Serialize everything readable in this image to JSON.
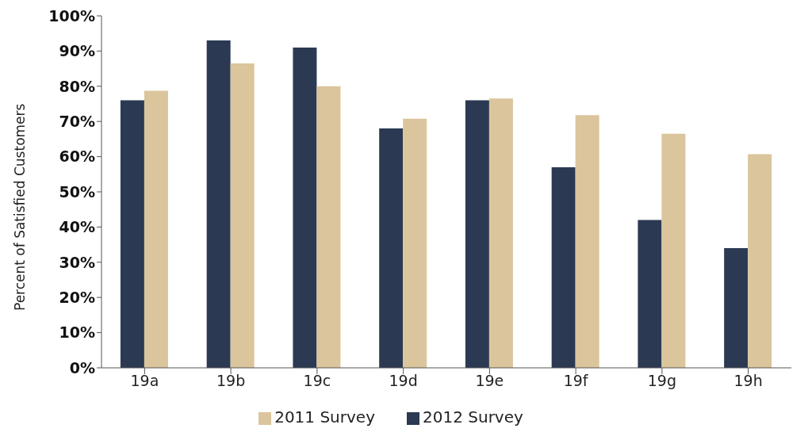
{
  "chart_data": {
    "type": "bar",
    "ylabel": "Percent of Satisfied Customers",
    "categories": [
      "19a",
      "19b",
      "19c",
      "19d",
      "19e",
      "19f",
      "19g",
      "19h"
    ],
    "series": [
      {
        "name": "2012 Survey",
        "color": "#2b3a52",
        "values": [
          76,
          93,
          91,
          68,
          76,
          57,
          42,
          34
        ]
      },
      {
        "name": "2011 Survey",
        "color": "#dbc59c",
        "values": [
          78.7,
          86.5,
          80,
          70.8,
          76.5,
          71.8,
          66.5,
          60.7
        ]
      }
    ],
    "ylim": [
      0,
      100
    ],
    "yticks": [
      {
        "value": 0,
        "label": "0%"
      },
      {
        "value": 10,
        "label": "10%"
      },
      {
        "value": 20,
        "label": "20%"
      },
      {
        "value": 30,
        "label": "30%"
      },
      {
        "value": 40,
        "label": "40%"
      },
      {
        "value": 50,
        "label": "50%"
      },
      {
        "value": 60,
        "label": "60%"
      },
      {
        "value": 70,
        "label": "70%"
      },
      {
        "value": 80,
        "label": "80%"
      },
      {
        "value": 90,
        "label": "90%"
      },
      {
        "value": 100,
        "label": "100%"
      }
    ],
    "grid": false,
    "legend": "bottom"
  }
}
